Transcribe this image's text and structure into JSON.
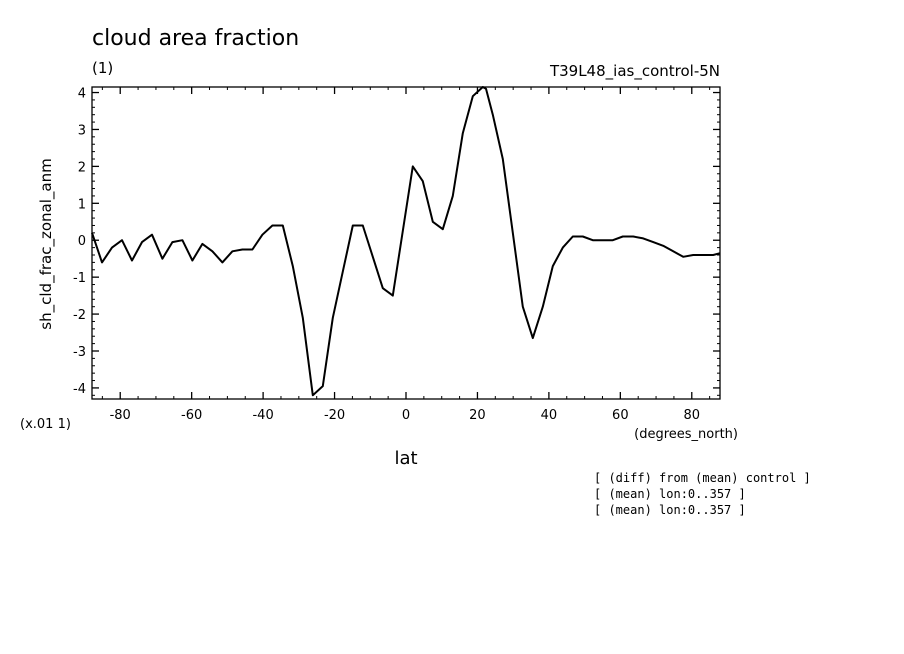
{
  "chart_data": {
    "type": "line",
    "title": "cloud area fraction",
    "subtitle": "(1)",
    "run_label": "T39L48_ias_control-5N",
    "xlabel": "lat",
    "xunits": "(degrees_north)",
    "ylabel": "sh_cld_frac_zonal_anm",
    "yscale_label": "(x.01 1)",
    "xlim": [
      -87.9,
      87.9
    ],
    "ylim": [
      -4.3,
      4.15
    ],
    "xticks": [
      -80,
      -60,
      -40,
      -20,
      0,
      20,
      40,
      60,
      80
    ],
    "xtick_labels": [
      "-80",
      "-60",
      "-40",
      "-20",
      "0",
      "20",
      "40",
      "60",
      "80"
    ],
    "yticks": [
      -4,
      -3,
      -2,
      -1,
      0,
      1,
      2,
      3,
      4
    ],
    "ytick_labels": [
      "-4",
      "-3",
      "-2",
      "-1",
      "0",
      "1",
      "2",
      "3",
      "4"
    ],
    "grid": false,
    "series": [
      {
        "x": [
          -87.9,
          -85.1,
          -82.3,
          -79.5,
          -76.7,
          -73.9,
          -71.1,
          -68.2,
          -65.4,
          -62.6,
          -59.8,
          -57.0,
          -54.2,
          -51.4,
          -48.6,
          -45.8,
          -43.0,
          -40.2,
          -37.4,
          -34.5,
          -31.7,
          -28.9,
          -26.1,
          -23.3,
          -20.5,
          -17.7,
          -14.9,
          -12.1,
          -9.3,
          -6.5,
          -3.7,
          -0.9,
          1.9,
          4.7,
          7.5,
          10.3,
          13.1,
          15.9,
          18.7,
          21.5,
          22.4,
          24.3,
          27.1,
          29.9,
          32.7,
          35.5,
          38.3,
          41.1,
          43.9,
          46.7,
          49.5,
          52.3,
          55.1,
          57.9,
          60.7,
          63.6,
          66.4,
          69.2,
          72.0,
          74.8,
          77.6,
          80.4,
          83.2,
          86.0,
          87.9
        ],
        "y": [
          0.2,
          -0.6,
          -0.2,
          0.0,
          -0.55,
          -0.05,
          0.15,
          -0.5,
          -0.05,
          0.0,
          -0.55,
          -0.1,
          -0.3,
          -0.6,
          -0.3,
          -0.25,
          -0.25,
          0.15,
          0.4,
          0.4,
          -0.7,
          -2.1,
          -4.2,
          -3.95,
          -2.1,
          -0.85,
          0.4,
          0.4,
          -0.45,
          -1.3,
          -1.5,
          0.25,
          2.0,
          1.6,
          0.5,
          0.3,
          1.2,
          2.9,
          3.9,
          4.15,
          4.1,
          3.4,
          2.2,
          0.2,
          -1.8,
          -2.65,
          -1.8,
          -0.7,
          -0.2,
          0.1,
          0.1,
          0.0,
          0.0,
          0.0,
          0.1,
          0.1,
          0.05,
          -0.05,
          -0.15,
          -0.3,
          -0.45,
          -0.4,
          -0.4,
          -0.4,
          -0.35
        ]
      }
    ]
  },
  "notes": [
    "[ (diff) from (mean) control ]",
    "[ (mean) lon:0..357 ]",
    "[ (mean) lon:0..357 ]"
  ]
}
